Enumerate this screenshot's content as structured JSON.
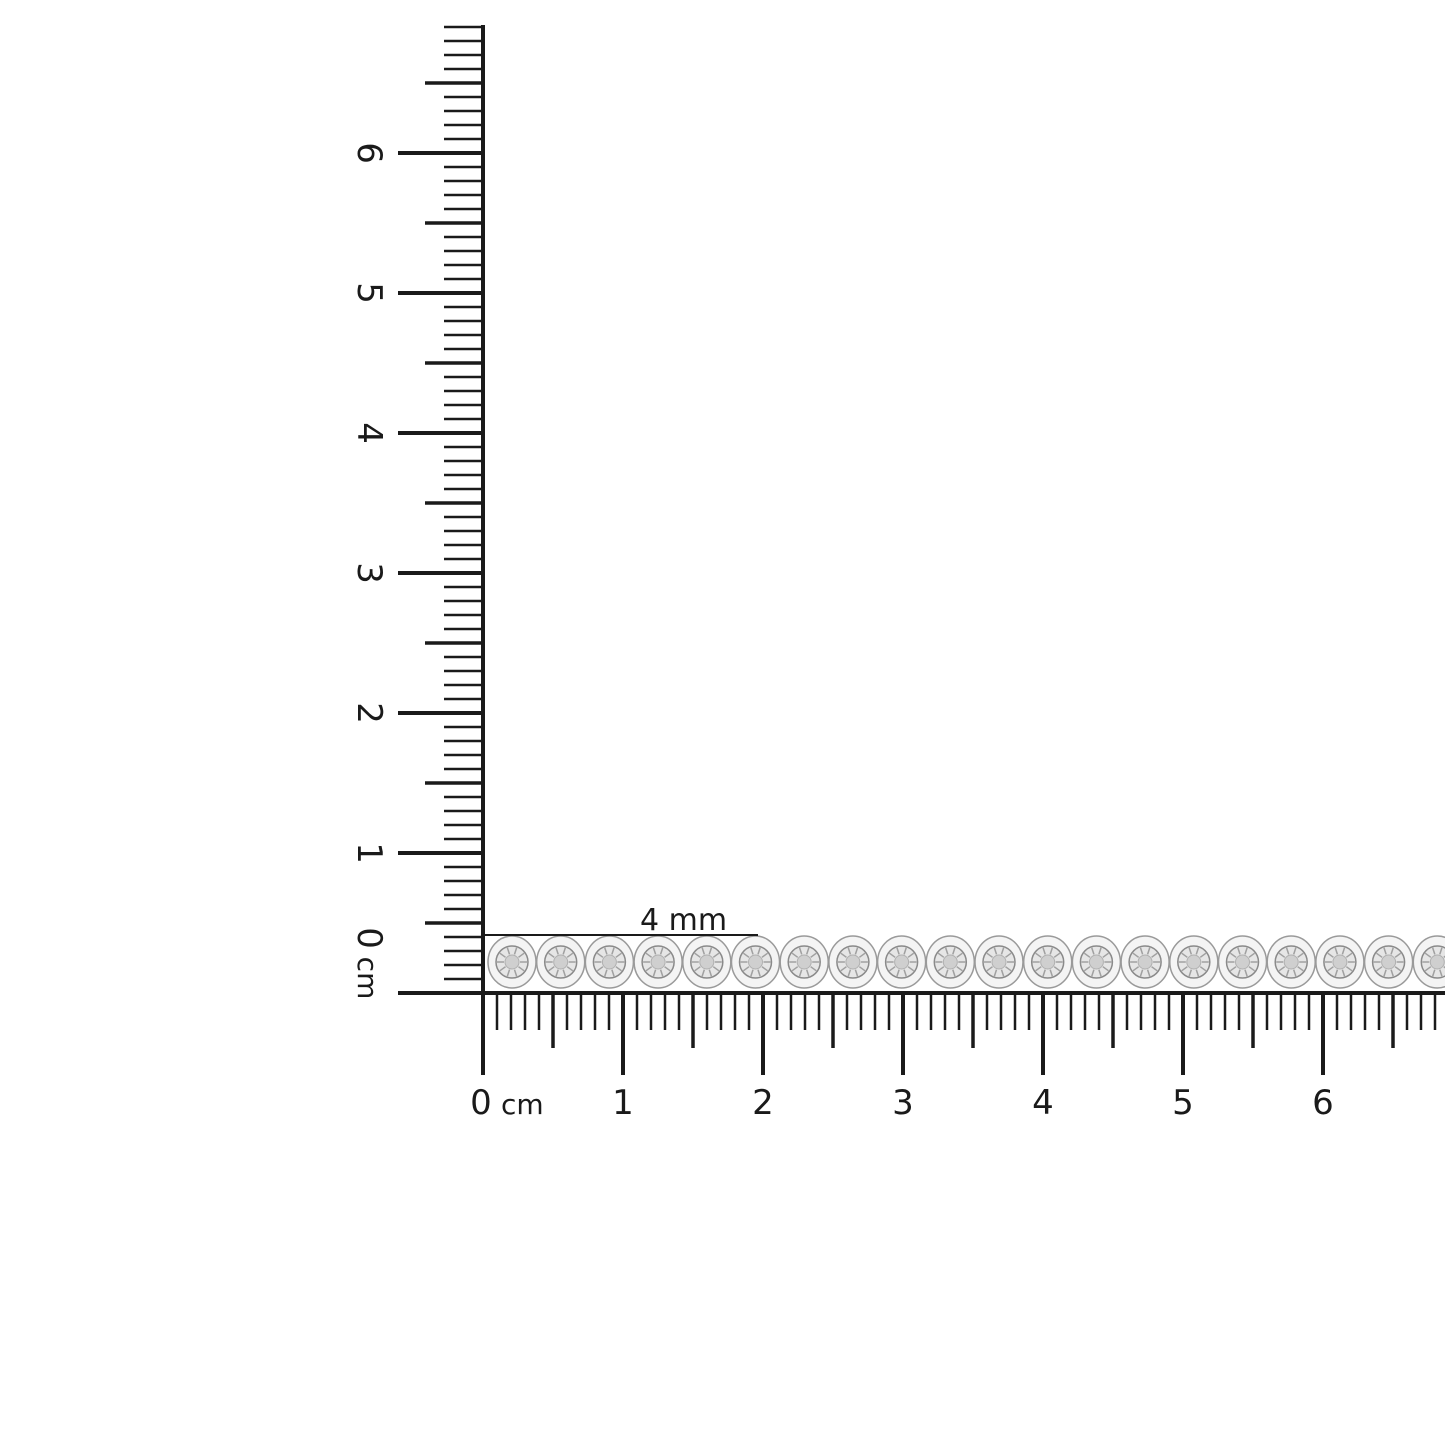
{
  "ruler": {
    "unit": "cm",
    "horizontal_labels": [
      "0",
      "1",
      "2",
      "3",
      "4",
      "5",
      "6"
    ],
    "vertical_labels": [
      "0",
      "1",
      "2",
      "3",
      "4",
      "5",
      "6"
    ],
    "unit_label": "cm"
  },
  "measurement": {
    "label": "4 mm"
  },
  "product": {
    "stone_count": 20,
    "metal_color": "#d8d8d8",
    "stone_color": "#cfcfcf"
  },
  "colors": {
    "ruler": "#1a1a1a",
    "background": "#ffffff"
  }
}
